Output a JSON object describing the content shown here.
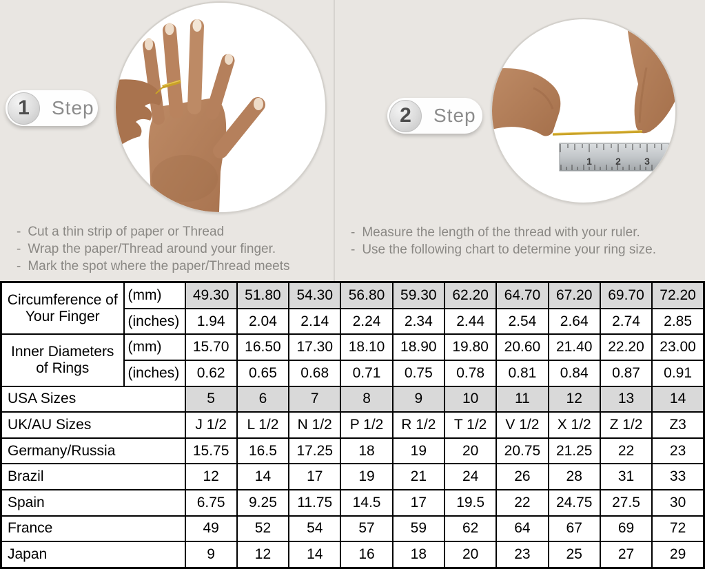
{
  "colors": {
    "page_bg": "#e9e6e2",
    "divider": "#d6d3cf",
    "table_gray": "#d9d9d9",
    "table_border": "#000000",
    "instruction_text": "#8a8884",
    "badge_label": "#8c8c8c",
    "skin": "#b5805c",
    "skin_dark": "#a06c49",
    "nail": "#eedcc9",
    "gold_thread": "#c9a227",
    "ruler_metal": "#b9bdc0"
  },
  "steps": [
    {
      "badge_number": "1",
      "badge_label": "Step",
      "image": "hand-with-thread-photo",
      "instructions": [
        "Cut a thin strip of paper or Thread",
        "Wrap the paper/Thread around your finger.",
        "Mark the spot where the paper/Thread meets"
      ]
    },
    {
      "badge_number": "2",
      "badge_label": "Step",
      "image": "thread-measured-on-ruler-photo",
      "instructions": [
        "Measure the length of the thread with your ruler.",
        "Use the following chart to determine your ring size."
      ]
    }
  ],
  "ruler_numbers": [
    "1",
    "2",
    "3"
  ],
  "chart_data": {
    "type": "table",
    "row_groups": [
      {
        "label": "Circumference of Your Finger",
        "rows": [
          {
            "unit": "(mm)",
            "gray": true,
            "values": [
              "49.30",
              "51.80",
              "54.30",
              "56.80",
              "59.30",
              "62.20",
              "64.70",
              "67.20",
              "69.70",
              "72.20"
            ]
          },
          {
            "unit": "(inches)",
            "gray": false,
            "values": [
              "1.94",
              "2.04",
              "2.14",
              "2.24",
              "2.34",
              "2.44",
              "2.54",
              "2.64",
              "2.74",
              "2.85"
            ]
          }
        ]
      },
      {
        "label": "Inner Diameters of Rings",
        "rows": [
          {
            "unit": "(mm)",
            "gray": false,
            "values": [
              "15.70",
              "16.50",
              "17.30",
              "18.10",
              "18.90",
              "19.80",
              "20.60",
              "21.40",
              "22.20",
              "23.00"
            ]
          },
          {
            "unit": "(inches)",
            "gray": false,
            "values": [
              "0.62",
              "0.65",
              "0.68",
              "0.71",
              "0.75",
              "0.78",
              "0.81",
              "0.84",
              "0.87",
              "0.91"
            ]
          }
        ]
      }
    ],
    "rows": [
      {
        "label": "USA Sizes",
        "gray": true,
        "values": [
          "5",
          "6",
          "7",
          "8",
          "9",
          "10",
          "11",
          "12",
          "13",
          "14"
        ]
      },
      {
        "label": "UK/AU Sizes",
        "gray": false,
        "values": [
          "J 1/2",
          "L 1/2",
          "N 1/2",
          "P 1/2",
          "R 1/2",
          "T 1/2",
          "V 1/2",
          "X 1/2",
          "Z 1/2",
          "Z3"
        ]
      },
      {
        "label": "Germany/Russia",
        "gray": false,
        "values": [
          "15.75",
          "16.5",
          "17.25",
          "18",
          "19",
          "20",
          "20.75",
          "21.25",
          "22",
          "23"
        ]
      },
      {
        "label": "Brazil",
        "gray": false,
        "values": [
          "12",
          "14",
          "17",
          "19",
          "21",
          "24",
          "26",
          "28",
          "31",
          "33"
        ]
      },
      {
        "label": "Spain",
        "gray": false,
        "values": [
          "6.75",
          "9.25",
          "11.75",
          "14.5",
          "17",
          "19.5",
          "22",
          "24.75",
          "27.5",
          "30"
        ]
      },
      {
        "label": "France",
        "gray": false,
        "values": [
          "49",
          "52",
          "54",
          "57",
          "59",
          "62",
          "64",
          "67",
          "69",
          "72"
        ]
      },
      {
        "label": "Japan",
        "gray": false,
        "values": [
          "9",
          "12",
          "14",
          "16",
          "18",
          "20",
          "23",
          "25",
          "27",
          "29"
        ]
      }
    ]
  }
}
